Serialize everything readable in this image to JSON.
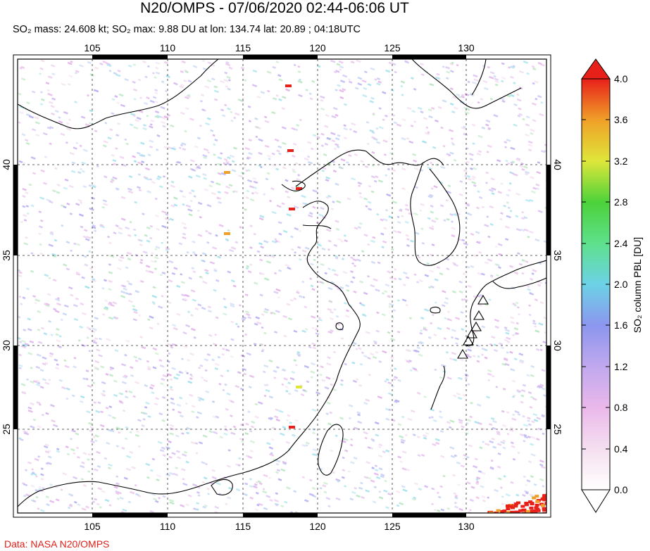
{
  "header": {
    "title": "N20/OMPS - 07/06/2020 02:44-06:06 UT",
    "subtitle": "SO₂ mass: 24.608 kt; SO₂ max: 9.88 DU at lon: 134.74 lat: 20.89 ; 04:18UTC"
  },
  "map": {
    "lon_ticks": [
      "105",
      "110",
      "115",
      "120",
      "125",
      "130"
    ],
    "lat_ticks": [
      "40",
      "35",
      "30",
      "25"
    ],
    "lon_range": [
      100,
      135
    ],
    "lat_range": [
      20,
      45
    ]
  },
  "colorbar": {
    "label": "SO₂ column PBL [DU]",
    "ticks": [
      "4.0",
      "3.6",
      "3.2",
      "2.8",
      "2.4",
      "2.0",
      "1.6",
      "1.2",
      "0.8",
      "0.4",
      "0.0"
    ],
    "range": [
      0,
      4
    ]
  },
  "footer": {
    "credit": "Data: NASA N20/OMPS"
  },
  "colors": {
    "credit": "#e0201a",
    "high": "#e8201a",
    "low": "#ffffff"
  }
}
